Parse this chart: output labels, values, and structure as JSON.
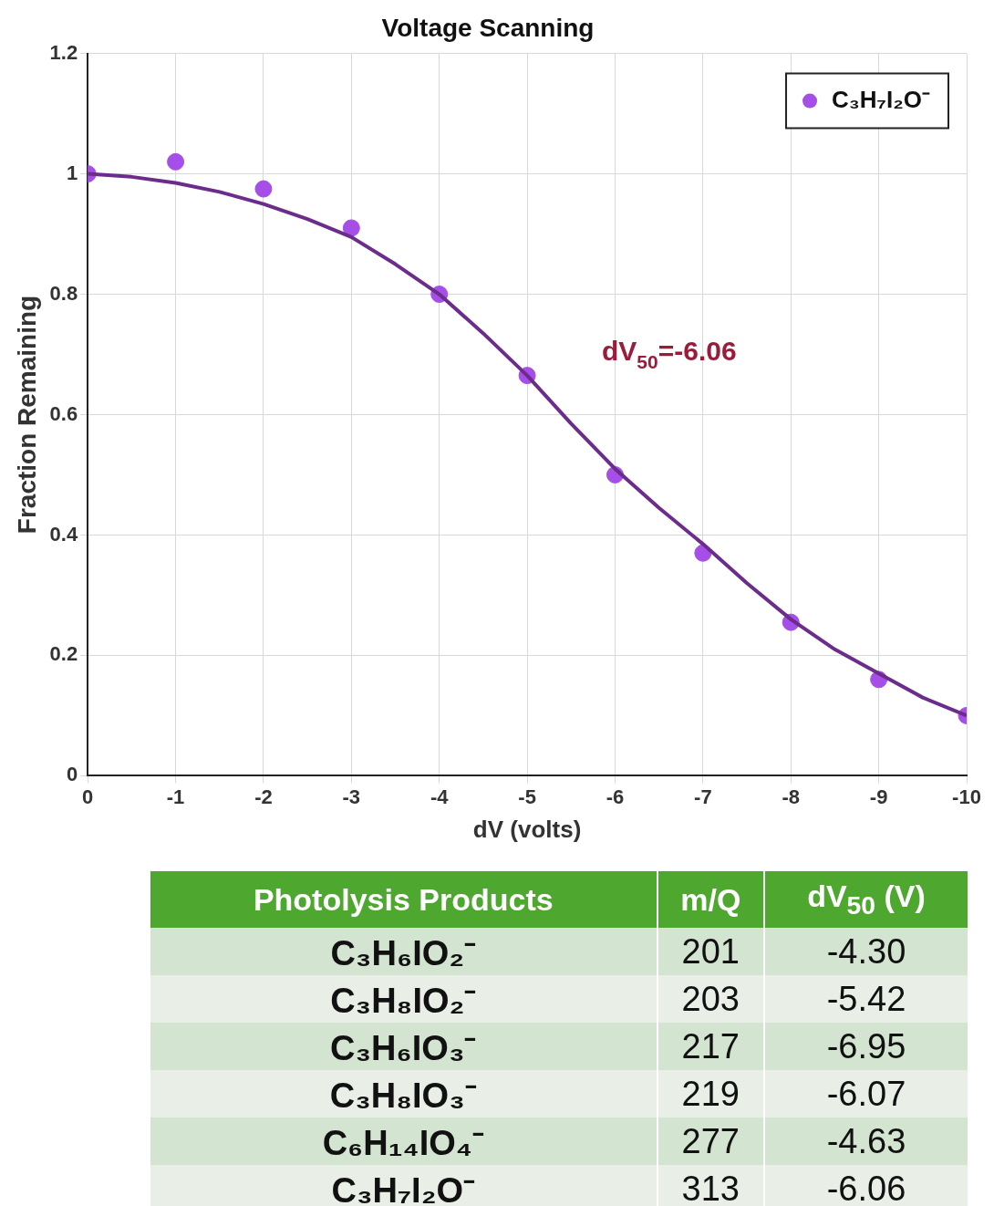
{
  "chart_data": [
    {
      "type": "scatter",
      "title": "Voltage Scanning",
      "xlabel": "dV (volts)",
      "ylabel": "Fraction Remaining",
      "xlim": [
        0,
        -10
      ],
      "xticks": [
        0,
        -1,
        -2,
        -3,
        -4,
        -5,
        -6,
        -7,
        -8,
        -9,
        -10
      ],
      "ylim": [
        0,
        1.2
      ],
      "yticks": [
        0,
        0.2,
        0.4,
        0.6,
        0.8,
        1,
        1.2
      ],
      "grid": true,
      "legend": "top right",
      "annotations": [
        "dV$_{50}$=-6.06"
      ],
      "series": [
        {
          "name": "C₃H₇I₂O⁻",
          "marker": "circle",
          "color": "#a54ee8",
          "x": [
            0,
            -1,
            -2,
            -3,
            -4,
            -5,
            -6,
            -7,
            -8,
            -9,
            -10
          ],
          "values": [
            1.0,
            1.02,
            0.975,
            0.91,
            0.8,
            0.665,
            0.5,
            0.37,
            0.255,
            0.16,
            0.1
          ]
        },
        {
          "type": "line",
          "color": "#6b2c8c",
          "x": [
            0,
            -0.5,
            -1,
            -1.5,
            -2,
            -2.5,
            -3,
            -3.5,
            -4,
            -4.5,
            -5,
            -5.5,
            -6,
            -6.5,
            -7,
            -7.5,
            -8,
            -8.5,
            -9,
            -9.5,
            -10
          ],
          "values": [
            1.0,
            0.995,
            0.985,
            0.97,
            0.95,
            0.925,
            0.895,
            0.85,
            0.8,
            0.735,
            0.665,
            0.585,
            0.51,
            0.445,
            0.385,
            0.32,
            0.26,
            0.21,
            0.17,
            0.13,
            0.1
          ]
        }
      ]
    },
    {
      "type": "other",
      "categories": [
        "Photolysis Products",
        "m/Q",
        "dV$_{50}$ (V)"
      ],
      "cell_labels": [
        [
          "C₃H₆IO₂⁻",
          "201",
          "-4.30"
        ],
        [
          "C₃H₈IO₂⁻",
          "203",
          "-5.42"
        ],
        [
          "C₃H₆IO₃⁻",
          "217",
          "-6.95"
        ],
        [
          "C₃H₈IO₃⁻",
          "219",
          "-6.07"
        ],
        [
          "C₆H₁₄IO₄⁻",
          "277",
          "-4.63"
        ],
        [
          "C₃H₇I₂O⁻",
          "313",
          "-6.06"
        ]
      ]
    }
  ]
}
